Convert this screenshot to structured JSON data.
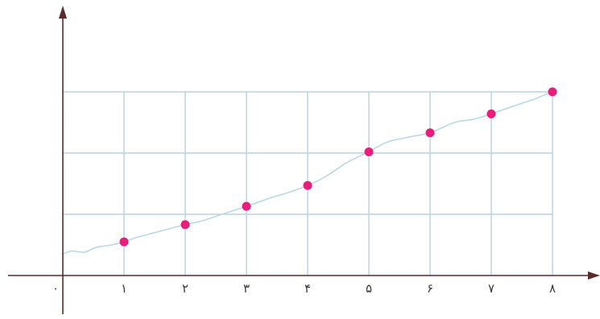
{
  "chart_data": {
    "type": "scatter",
    "x_tick_labels": [
      "۰",
      "۱",
      "۲",
      "۳",
      "۴",
      "۵",
      "۶",
      "۷",
      "۸"
    ],
    "points": [
      {
        "x": 1,
        "y": 0.55
      },
      {
        "x": 2,
        "y": 0.83
      },
      {
        "x": 3,
        "y": 1.13
      },
      {
        "x": 4,
        "y": 1.47
      },
      {
        "x": 5,
        "y": 2.02
      },
      {
        "x": 6,
        "y": 2.33
      },
      {
        "x": 7,
        "y": 2.64
      },
      {
        "x": 8,
        "y": 3.0
      }
    ],
    "trend_curve": [
      [
        0,
        0.35
      ],
      [
        0.15,
        0.4
      ],
      [
        0.35,
        0.38
      ],
      [
        0.55,
        0.46
      ],
      [
        0.8,
        0.5
      ],
      [
        1,
        0.55
      ],
      [
        1.2,
        0.62
      ],
      [
        1.5,
        0.7
      ],
      [
        1.8,
        0.78
      ],
      [
        2,
        0.83
      ],
      [
        2.3,
        0.9
      ],
      [
        2.6,
        1.0
      ],
      [
        3,
        1.13
      ],
      [
        3.4,
        1.27
      ],
      [
        3.7,
        1.36
      ],
      [
        4,
        1.47
      ],
      [
        4.3,
        1.62
      ],
      [
        4.6,
        1.82
      ],
      [
        4.85,
        1.95
      ],
      [
        5,
        2.02
      ],
      [
        5.3,
        2.18
      ],
      [
        5.7,
        2.27
      ],
      [
        6,
        2.33
      ],
      [
        6.4,
        2.5
      ],
      [
        6.7,
        2.55
      ],
      [
        7,
        2.64
      ],
      [
        7.4,
        2.78
      ],
      [
        7.7,
        2.88
      ],
      [
        8,
        3.0
      ]
    ],
    "xlim": [
      0,
      8
    ],
    "ylim": [
      0,
      3
    ],
    "grid": true,
    "colors": {
      "point": "#ec1c7c",
      "curve": "#b9d9e6",
      "grid": "#aecbe0",
      "axis": "#5c2a2a"
    }
  }
}
